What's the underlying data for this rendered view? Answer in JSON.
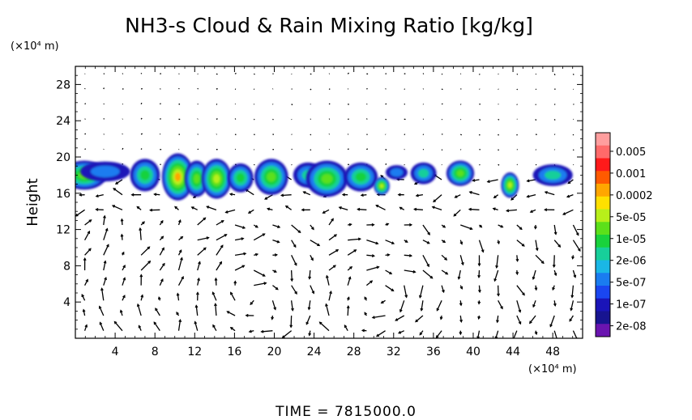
{
  "chart_data": {
    "type": "heatmap",
    "title": "NH3-s Cloud & Rain Mixing Ratio [kg/kg]",
    "ylabel": "Height",
    "y_unit": "(×10⁴ m)",
    "x_unit": "(×10⁴ m)",
    "xlim": [
      0,
      51
    ],
    "ylim": [
      0,
      30
    ],
    "x_ticks": [
      "4",
      "8",
      "12",
      "16",
      "20",
      "24",
      "28",
      "32",
      "36",
      "40",
      "44",
      "48"
    ],
    "y_ticks": [
      "4",
      "8",
      "12",
      "16",
      "20",
      "24",
      "28"
    ],
    "x_tick_values": [
      4,
      8,
      12,
      16,
      20,
      24,
      28,
      32,
      36,
      40,
      44,
      48
    ],
    "y_tick_values": [
      4,
      8,
      12,
      16,
      20,
      24,
      28
    ],
    "colorbar": {
      "labels": [
        "0.005",
        "0.001",
        "0.0002",
        "5e-05",
        "1e-05",
        "2e-06",
        "5e-07",
        "1e-07",
        "2e-08"
      ],
      "colors": [
        "#ff9e9e",
        "#ff6a6a",
        "#ff1a1a",
        "#ff5a00",
        "#ffa600",
        "#ffe000",
        "#b8ef1a",
        "#5ce01a",
        "#19d23c",
        "#17cf9a",
        "#1ab7e6",
        "#1a7cf0",
        "#1a46f0",
        "#1a14b8",
        "#171490",
        "#6a14b0"
      ]
    },
    "cloud_cells": [
      {
        "x": 0.9,
        "y": 18.0,
        "w": 4.5,
        "h": 1.6,
        "level": 4
      },
      {
        "x": 3.0,
        "y": 18.4,
        "w": 5.0,
        "h": 1.1,
        "level": 1
      },
      {
        "x": 7.0,
        "y": 18.0,
        "w": 3.0,
        "h": 1.8,
        "level": 3
      },
      {
        "x": 10.3,
        "y": 17.8,
        "w": 3.2,
        "h": 2.6,
        "level": 6
      },
      {
        "x": 12.2,
        "y": 17.6,
        "w": 2.4,
        "h": 2.0,
        "level": 4
      },
      {
        "x": 14.2,
        "y": 17.6,
        "w": 3.0,
        "h": 2.2,
        "level": 5
      },
      {
        "x": 16.6,
        "y": 17.7,
        "w": 2.6,
        "h": 1.6,
        "level": 3
      },
      {
        "x": 19.7,
        "y": 17.8,
        "w": 3.4,
        "h": 2.0,
        "level": 4
      },
      {
        "x": 23.4,
        "y": 18.0,
        "w": 3.0,
        "h": 1.4,
        "level": 2
      },
      {
        "x": 25.3,
        "y": 17.6,
        "w": 4.2,
        "h": 2.0,
        "level": 4
      },
      {
        "x": 28.7,
        "y": 17.8,
        "w": 3.4,
        "h": 1.6,
        "level": 3
      },
      {
        "x": 30.8,
        "y": 16.8,
        "w": 1.6,
        "h": 1.0,
        "level": 5
      },
      {
        "x": 32.3,
        "y": 18.3,
        "w": 2.2,
        "h": 0.8,
        "level": 1
      },
      {
        "x": 35.0,
        "y": 18.2,
        "w": 2.6,
        "h": 1.2,
        "level": 2
      },
      {
        "x": 38.7,
        "y": 18.2,
        "w": 2.8,
        "h": 1.4,
        "level": 4
      },
      {
        "x": 43.7,
        "y": 16.9,
        "w": 1.8,
        "h": 1.4,
        "level": 5
      },
      {
        "x": 48.0,
        "y": 18.0,
        "w": 4.0,
        "h": 1.2,
        "level": 2
      }
    ]
  },
  "axis_labels": {
    "y_unit": "(×10⁴ m)",
    "x_unit": "(×10⁴ m)"
  },
  "time_label": "TIME  =  7815000.0"
}
